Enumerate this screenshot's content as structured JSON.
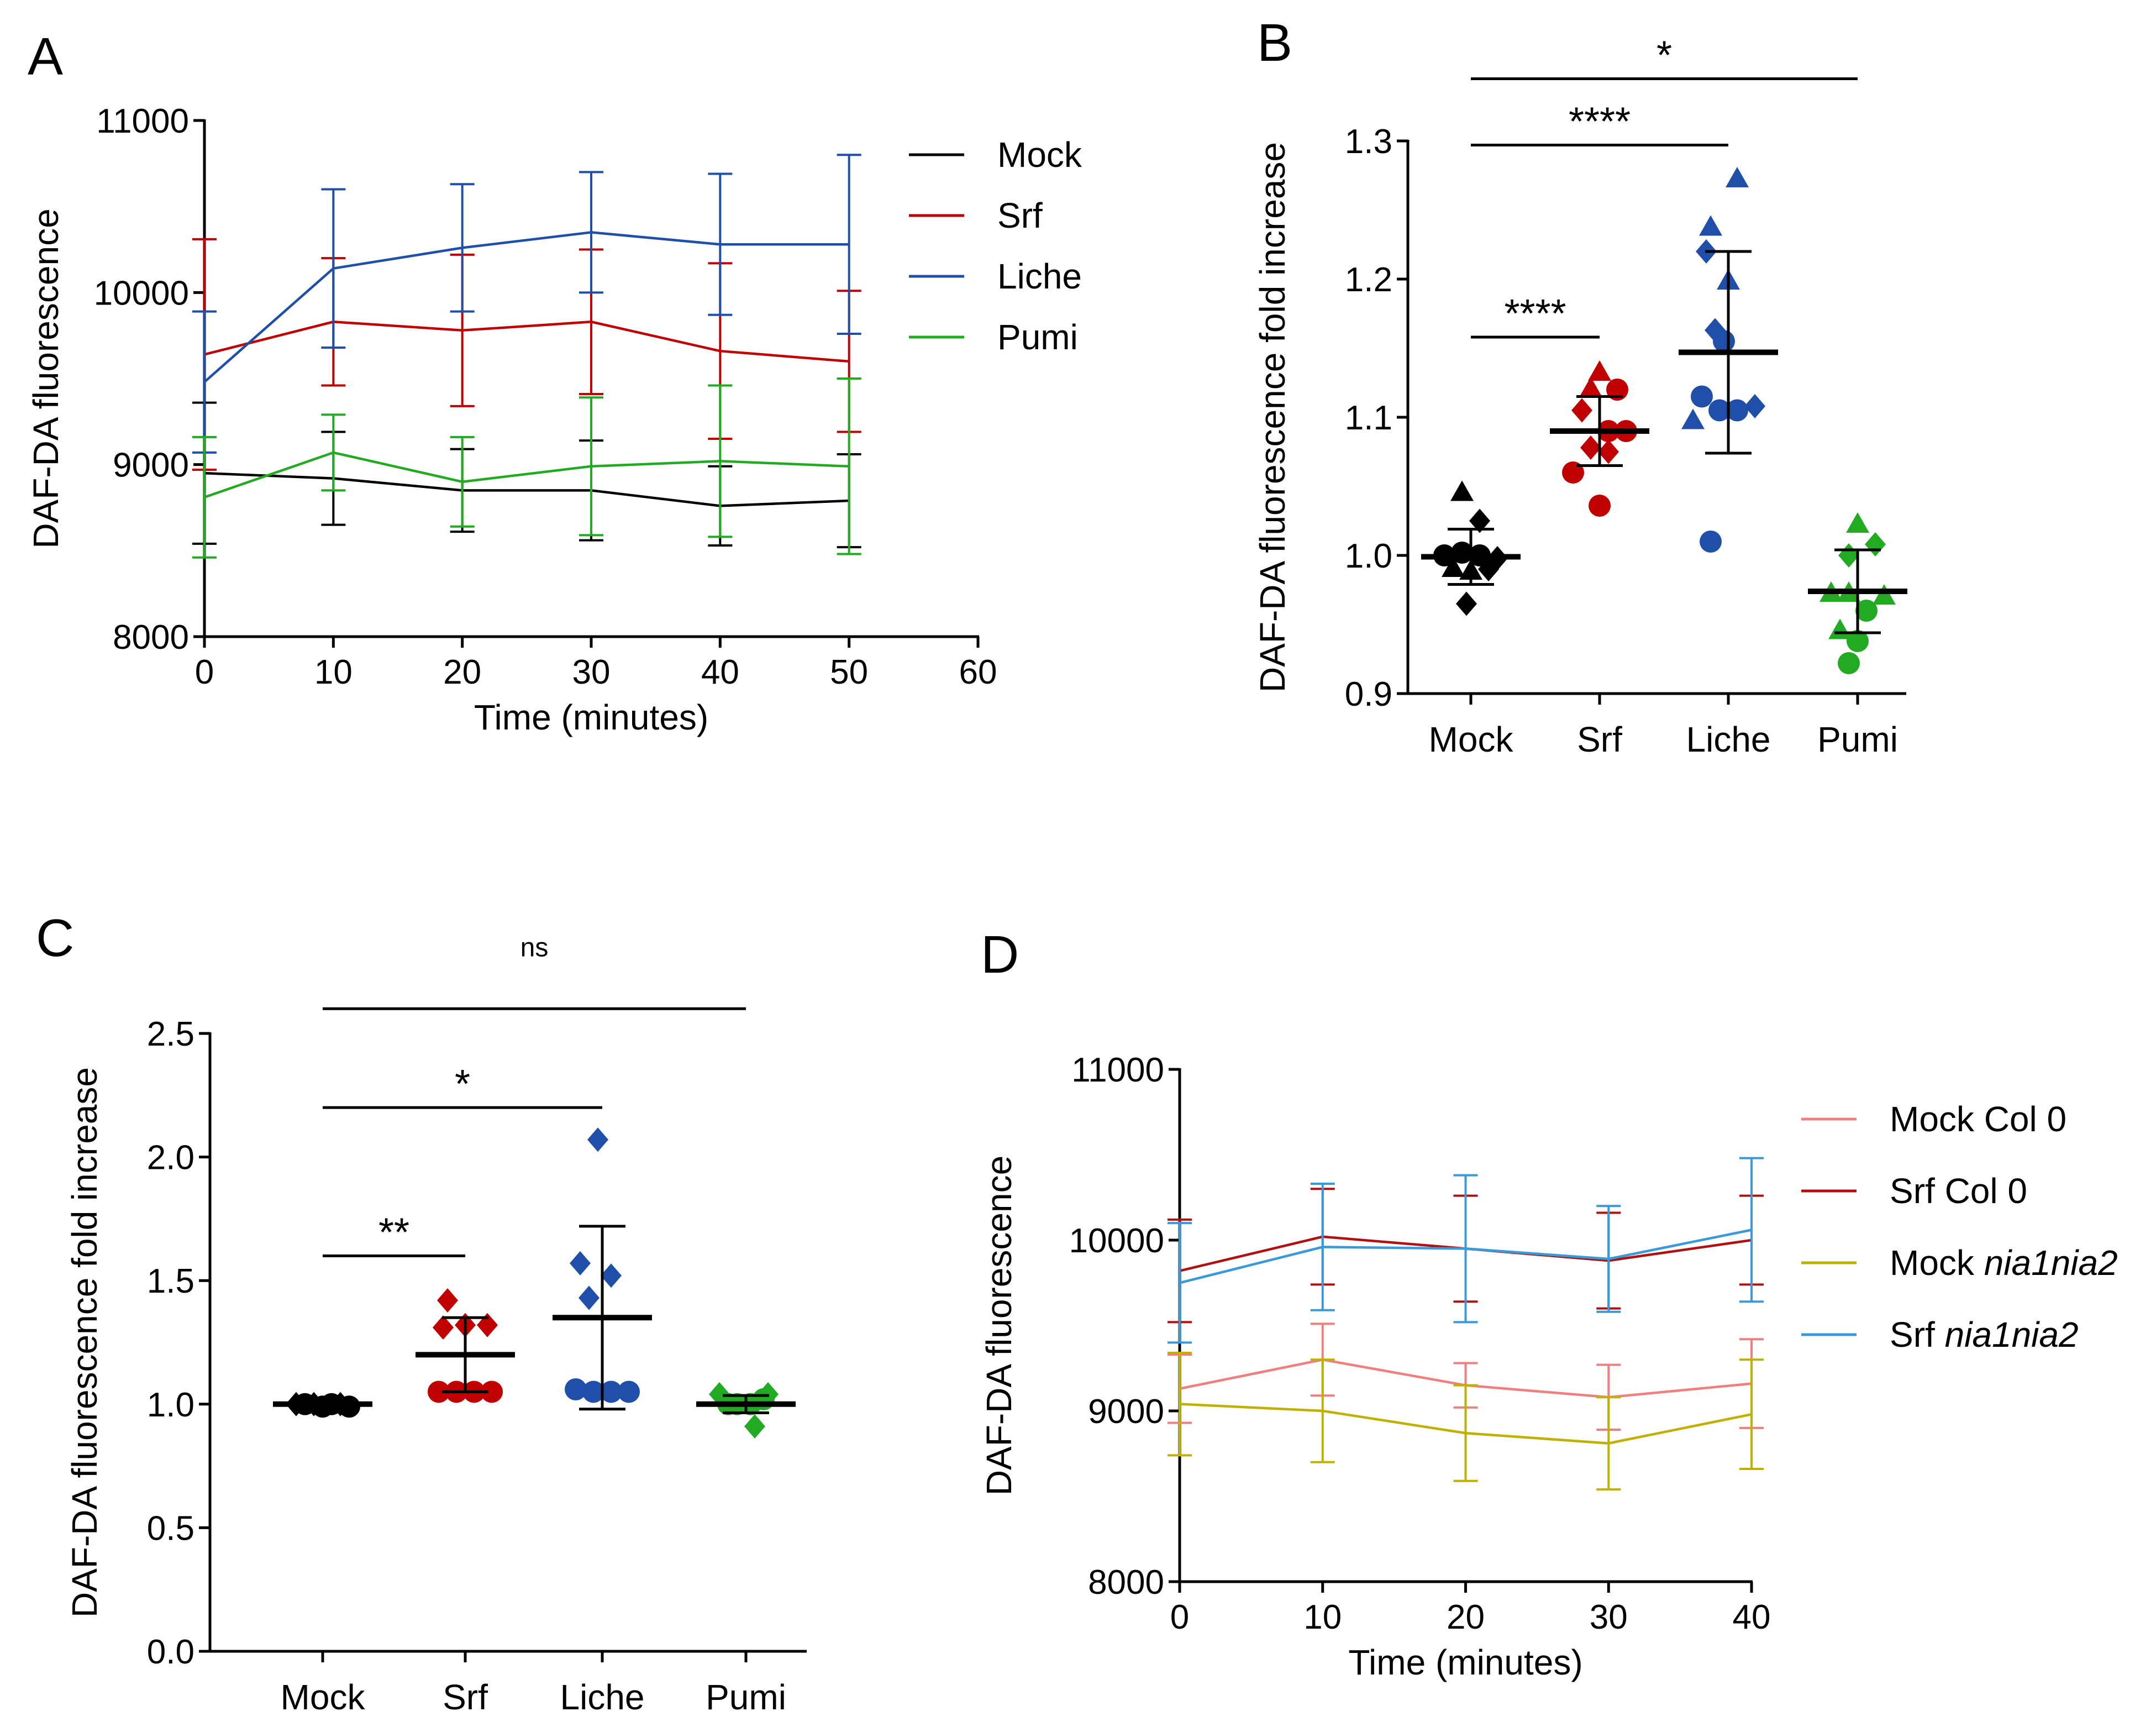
{
  "figure": {
    "panel_letters": [
      "A",
      "B",
      "C",
      "D"
    ]
  },
  "chart_data": [
    {
      "panel": "A",
      "type": "line",
      "xlabel": "Time (minutes)",
      "ylabel": "DAF-DA fluorescence",
      "xlim": [
        0,
        60
      ],
      "ylim": [
        8000,
        11000
      ],
      "xticks": [
        0,
        10,
        20,
        30,
        40,
        50,
        60
      ],
      "yticks": [
        8000,
        9000,
        10000,
        11000
      ],
      "legend_position": "right",
      "series": [
        {
          "name": "Mock",
          "color": "#000000",
          "x": [
            0,
            10,
            20,
            30,
            40,
            50
          ],
          "y": [
            8950,
            8920,
            8850,
            8850,
            8760,
            8790
          ],
          "err": [
            410,
            270,
            240,
            290,
            230,
            270
          ]
        },
        {
          "name": "Srf",
          "color": "#c00000",
          "x": [
            0,
            10,
            20,
            30,
            40,
            50
          ],
          "y": [
            9640,
            9830,
            9780,
            9830,
            9660,
            9600
          ],
          "err": [
            670,
            370,
            440,
            420,
            510,
            410
          ]
        },
        {
          "name": "Liche",
          "color": "#1f4fa8",
          "x": [
            0,
            10,
            20,
            30,
            40,
            50
          ],
          "y": [
            9480,
            10140,
            10260,
            10350,
            10280,
            10280
          ],
          "err": [
            410,
            460,
            370,
            350,
            410,
            520
          ]
        },
        {
          "name": "Pumi",
          "color": "#22aa22",
          "x": [
            0,
            10,
            20,
            30,
            40,
            50
          ],
          "y": [
            8810,
            9070,
            8900,
            8990,
            9020,
            8990
          ],
          "err": [
            350,
            220,
            260,
            400,
            440,
            510
          ]
        }
      ]
    },
    {
      "panel": "B",
      "type": "scatter",
      "ylabel": "DAF-DA fluorescence fold increase",
      "categories": [
        "Mock",
        "Srf",
        "Liche",
        "Pumi"
      ],
      "ylim": [
        0.9,
        1.3
      ],
      "yticks": [
        "0.9",
        "1.0",
        "1.1",
        "1.2",
        "1.3"
      ],
      "groups": [
        {
          "name": "Mock",
          "color": "#000000",
          "mean": 0.999,
          "sd": 0.02,
          "points": [
            {
              "y": 1.045,
              "m": "tri",
              "dx": -1
            },
            {
              "y": 1.025,
              "m": "dia",
              "dx": 1
            },
            {
              "y": 1.0,
              "m": "circ",
              "dx": -3
            },
            {
              "y": 1.002,
              "m": "circ",
              "dx": -1
            },
            {
              "y": 1.0,
              "m": "circ",
              "dx": 1
            },
            {
              "y": 0.998,
              "m": "dia",
              "dx": 3
            },
            {
              "y": 0.99,
              "m": "tri",
              "dx": -2
            },
            {
              "y": 0.988,
              "m": "tri",
              "dx": 0
            },
            {
              "y": 0.99,
              "m": "dia",
              "dx": 2
            },
            {
              "y": 0.965,
              "m": "dia",
              "dx": -0.5
            }
          ]
        },
        {
          "name": "Srf",
          "color": "#c00000",
          "mean": 1.09,
          "sd": 0.025,
          "points": [
            {
              "y": 1.132,
              "m": "tri",
              "dx": 0
            },
            {
              "y": 1.12,
              "m": "circ",
              "dx": 2
            },
            {
              "y": 1.12,
              "m": "tri",
              "dx": -1
            },
            {
              "y": 1.105,
              "m": "dia",
              "dx": -2
            },
            {
              "y": 1.09,
              "m": "circ",
              "dx": 1
            },
            {
              "y": 1.09,
              "m": "circ",
              "dx": 3
            },
            {
              "y": 1.078,
              "m": "dia",
              "dx": -1
            },
            {
              "y": 1.075,
              "m": "dia",
              "dx": 1
            },
            {
              "y": 1.06,
              "m": "circ",
              "dx": -3
            },
            {
              "y": 1.036,
              "m": "circ",
              "dx": 0
            }
          ]
        },
        {
          "name": "Liche",
          "color": "#1f4fa8",
          "mean": 1.147,
          "sd": 0.073,
          "points": [
            {
              "y": 1.272,
              "m": "tri",
              "dx": 1
            },
            {
              "y": 1.237,
              "m": "tri",
              "dx": -2
            },
            {
              "y": 1.22,
              "m": "dia",
              "dx": -2.5
            },
            {
              "y": 1.198,
              "m": "tri",
              "dx": 0
            },
            {
              "y": 1.163,
              "m": "dia",
              "dx": -1.5
            },
            {
              "y": 1.155,
              "m": "circ",
              "dx": -0.5
            },
            {
              "y": 1.115,
              "m": "circ",
              "dx": -3
            },
            {
              "y": 1.097,
              "m": "tri",
              "dx": -4
            },
            {
              "y": 1.105,
              "m": "circ",
              "dx": -1
            },
            {
              "y": 1.105,
              "m": "circ",
              "dx": 1
            },
            {
              "y": 1.108,
              "m": "dia",
              "dx": 3
            },
            {
              "y": 1.01,
              "m": "circ",
              "dx": -2
            }
          ]
        },
        {
          "name": "Pumi",
          "color": "#22aa22",
          "mean": 0.974,
          "sd": 0.03,
          "points": [
            {
              "y": 1.022,
              "m": "tri",
              "dx": 0
            },
            {
              "y": 1.008,
              "m": "dia",
              "dx": 2
            },
            {
              "y": 1.0,
              "m": "dia",
              "dx": -1
            },
            {
              "y": 0.972,
              "m": "tri",
              "dx": -3
            },
            {
              "y": 0.972,
              "m": "tri",
              "dx": -1
            },
            {
              "y": 0.97,
              "m": "tri",
              "dx": 3
            },
            {
              "y": 0.96,
              "m": "circ",
              "dx": 1
            },
            {
              "y": 0.945,
              "m": "tri",
              "dx": -2
            },
            {
              "y": 0.938,
              "m": "circ",
              "dx": 0
            },
            {
              "y": 0.922,
              "m": "circ",
              "dx": -1
            }
          ]
        }
      ],
      "annotations": [
        {
          "label": "*",
          "from": 0,
          "to": 3,
          "level": 1.345
        },
        {
          "label": "****",
          "from": 0,
          "to": 2,
          "level": 1.297
        },
        {
          "label": "****",
          "from": 0,
          "to": 1,
          "level": 1.158
        }
      ]
    },
    {
      "panel": "C",
      "type": "scatter",
      "ylabel": "DAF-DA fluorescence fold increase",
      "categories": [
        "Mock",
        "Srf",
        "Liche",
        "Pumi"
      ],
      "ylim": [
        0.0,
        2.5
      ],
      "yticks": [
        "0.0",
        "0.5",
        "1.0",
        "1.5",
        "2.0",
        "2.5"
      ],
      "groups": [
        {
          "name": "Mock",
          "color": "#000000",
          "mean": 1.0,
          "sd": 0.01,
          "points": [
            {
              "y": 1.0,
              "m": "dia",
              "dx": -3
            },
            {
              "y": 1.0,
              "m": "circ",
              "dx": -2
            },
            {
              "y": 1.0,
              "m": "dia",
              "dx": -1
            },
            {
              "y": 0.99,
              "m": "circ",
              "dx": 0
            },
            {
              "y": 1.0,
              "m": "circ",
              "dx": 1
            },
            {
              "y": 1.0,
              "m": "dia",
              "dx": 2
            },
            {
              "y": 0.99,
              "m": "circ",
              "dx": 3
            }
          ]
        },
        {
          "name": "Srf",
          "color": "#c00000",
          "mean": 1.2,
          "sd": 0.15,
          "points": [
            {
              "y": 1.42,
              "m": "dia",
              "dx": -2
            },
            {
              "y": 1.31,
              "m": "dia",
              "dx": -2.5
            },
            {
              "y": 1.32,
              "m": "dia",
              "dx": 0
            },
            {
              "y": 1.32,
              "m": "dia",
              "dx": 2.5
            },
            {
              "y": 1.05,
              "m": "circ",
              "dx": -3
            },
            {
              "y": 1.05,
              "m": "circ",
              "dx": -1
            },
            {
              "y": 1.05,
              "m": "circ",
              "dx": 1
            },
            {
              "y": 1.05,
              "m": "circ",
              "dx": 3
            }
          ]
        },
        {
          "name": "Liche",
          "color": "#1f4fa8",
          "mean": 1.35,
          "sd": 0.37,
          "points": [
            {
              "y": 2.07,
              "m": "dia",
              "dx": -0.5
            },
            {
              "y": 1.57,
              "m": "dia",
              "dx": -2.5
            },
            {
              "y": 1.52,
              "m": "dia",
              "dx": 1
            },
            {
              "y": 1.43,
              "m": "dia",
              "dx": -1.5
            },
            {
              "y": 1.06,
              "m": "circ",
              "dx": -3
            },
            {
              "y": 1.05,
              "m": "circ",
              "dx": -1
            },
            {
              "y": 1.05,
              "m": "circ",
              "dx": 1
            },
            {
              "y": 1.05,
              "m": "circ",
              "dx": 3
            }
          ]
        },
        {
          "name": "Pumi",
          "color": "#22aa22",
          "mean": 1.0,
          "sd": 0.035,
          "points": [
            {
              "y": 1.04,
              "m": "dia",
              "dx": -3
            },
            {
              "y": 1.0,
              "m": "circ",
              "dx": -2
            },
            {
              "y": 1.0,
              "m": "circ",
              "dx": -1
            },
            {
              "y": 1.0,
              "m": "circ",
              "dx": 0.5
            },
            {
              "y": 1.02,
              "m": "circ",
              "dx": 2
            },
            {
              "y": 1.04,
              "m": "dia",
              "dx": 2.5
            },
            {
              "y": 0.91,
              "m": "dia",
              "dx": 1
            }
          ]
        }
      ],
      "annotations": [
        {
          "label": "ns",
          "from": 0,
          "to": 3,
          "level": 2.6
        },
        {
          "label": "*",
          "from": 0,
          "to": 2,
          "level": 2.2
        },
        {
          "label": "**",
          "from": 0,
          "to": 1,
          "level": 1.6
        }
      ]
    },
    {
      "panel": "D",
      "type": "line",
      "xlabel": "Time (minutes)",
      "ylabel": "DAF-DA fluorescence",
      "xlim": [
        0,
        40
      ],
      "ylim": [
        8000,
        11000
      ],
      "xticks": [
        0,
        10,
        20,
        30,
        40
      ],
      "yticks": [
        8000,
        9000,
        10000,
        11000
      ],
      "legend_position": "right",
      "series": [
        {
          "name": "Mock Col 0",
          "name_parts": [
            "Mock Col 0",
            ""
          ],
          "color": "#f08080",
          "x": [
            0,
            10,
            20,
            30,
            40
          ],
          "y": [
            9130,
            9300,
            9150,
            9080,
            9160
          ],
          "err": [
            200,
            210,
            130,
            190,
            260
          ]
        },
        {
          "name": "Srf Col 0",
          "name_parts": [
            "Srf Col 0",
            ""
          ],
          "color": "#b01010",
          "x": [
            0,
            10,
            20,
            30,
            40
          ],
          "y": [
            9820,
            10020,
            9950,
            9880,
            10000
          ],
          "err": [
            300,
            280,
            310,
            280,
            260
          ]
        },
        {
          "name": "Mock nia1nia2",
          "name_parts": [
            "Mock ",
            "nia1nia2"
          ],
          "color": "#c0b000",
          "x": [
            0,
            10,
            20,
            30,
            40
          ],
          "y": [
            9040,
            9000,
            8870,
            8810,
            8980
          ],
          "err": [
            300,
            300,
            280,
            270,
            320
          ]
        },
        {
          "name": "Srf nia1nia2",
          "name_parts": [
            "Srf ",
            "nia1nia2"
          ],
          "color": "#3a9ad9",
          "x": [
            0,
            10,
            20,
            30,
            40
          ],
          "y": [
            9750,
            9960,
            9950,
            9890,
            10060
          ],
          "err": [
            350,
            370,
            430,
            310,
            420
          ]
        }
      ]
    }
  ]
}
